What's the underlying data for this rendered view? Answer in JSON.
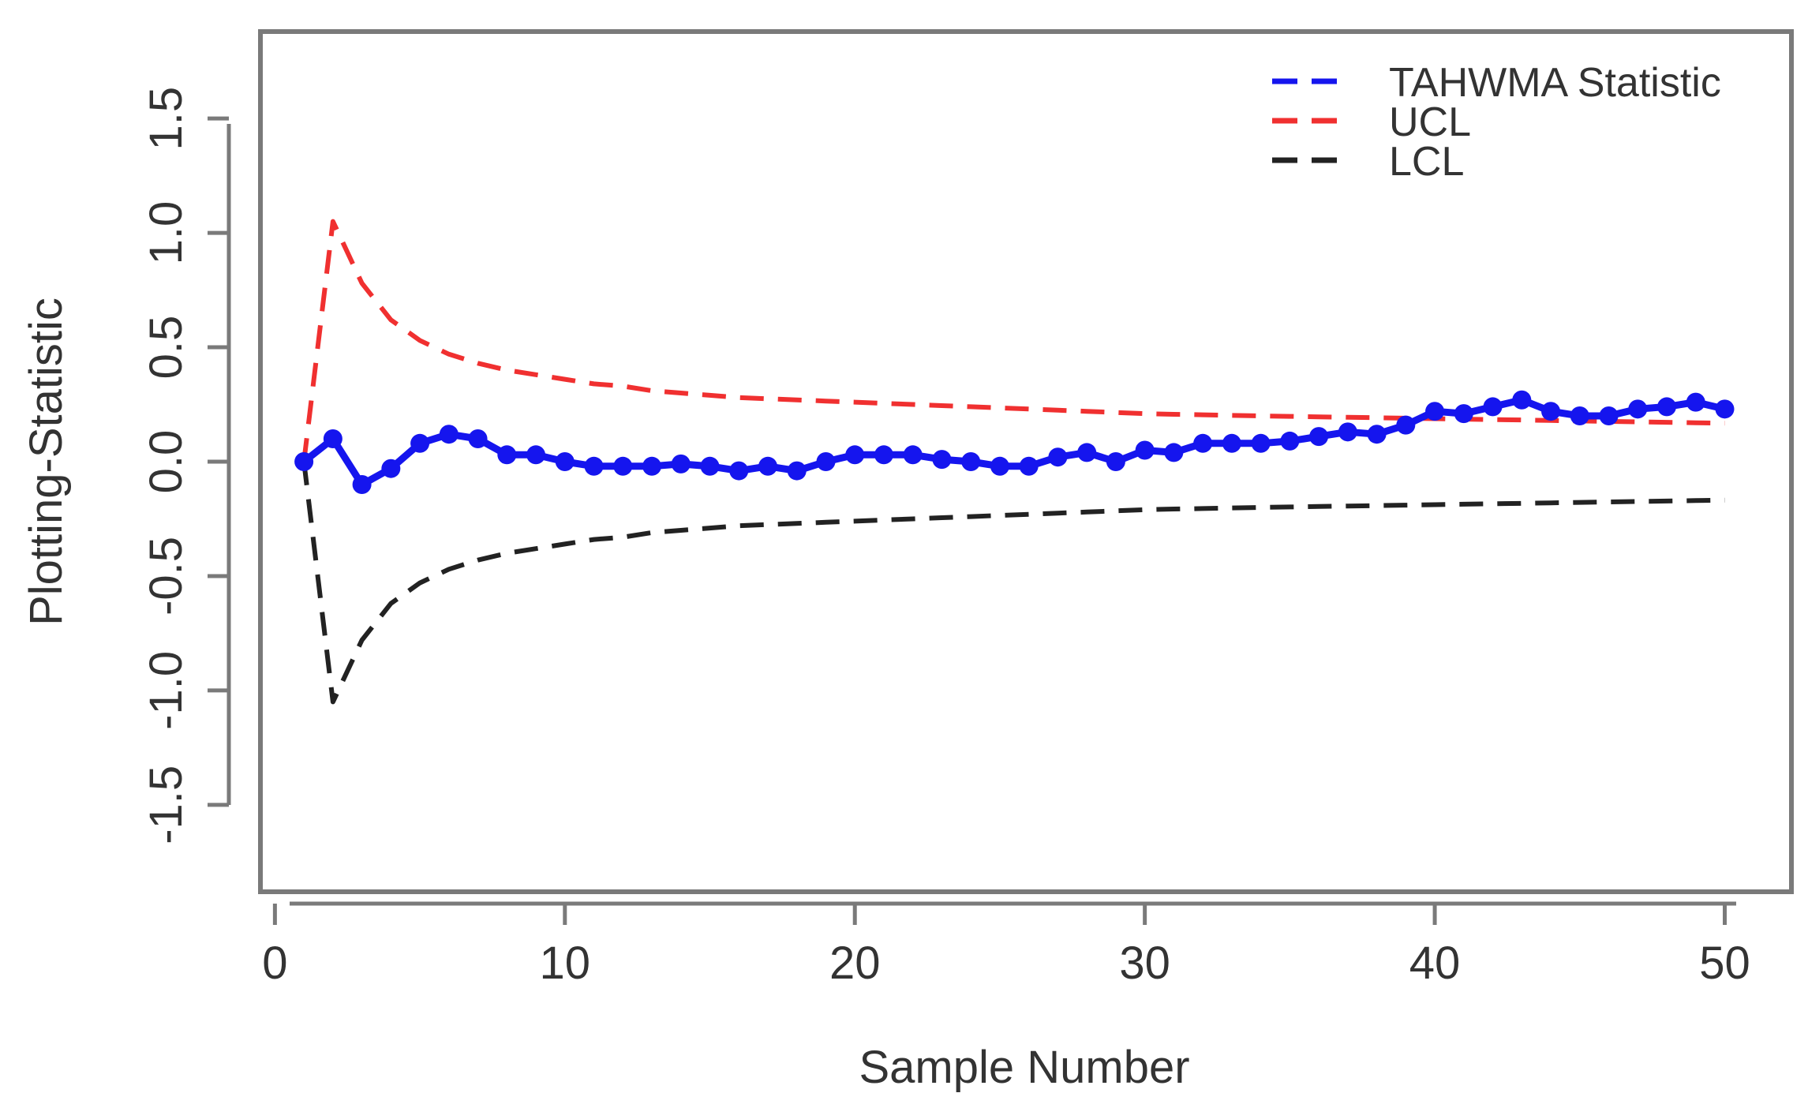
{
  "chart_data": {
    "type": "line",
    "title": "",
    "xlabel": "Sample Number",
    "ylabel": "Plotting-Statistic",
    "xlim": [
      -0.5,
      52.3
    ],
    "ylim": [
      -1.88,
      1.88
    ],
    "xticks": [
      0,
      10,
      20,
      30,
      40,
      50
    ],
    "xtick_labels": [
      "0",
      "10",
      "20",
      "30",
      "40",
      "50"
    ],
    "yticks": [
      -1.5,
      -1.0,
      -0.5,
      0.0,
      0.5,
      1.0,
      1.5
    ],
    "ytick_labels": [
      "-1.5",
      "-1.0",
      "-0.5",
      "0.0",
      "0.5",
      "1.0",
      "1.5"
    ],
    "legend_position": "top-right",
    "colors": {
      "statistic": "#1515ee",
      "ucl": "#f03030",
      "lcl": "#222222",
      "frame": "#7a7a7a"
    },
    "x": [
      1,
      2,
      3,
      4,
      5,
      6,
      7,
      8,
      9,
      10,
      11,
      12,
      13,
      14,
      15,
      16,
      17,
      18,
      19,
      20,
      21,
      22,
      23,
      24,
      25,
      26,
      27,
      28,
      29,
      30,
      31,
      32,
      33,
      34,
      35,
      36,
      37,
      38,
      39,
      40,
      41,
      42,
      43,
      44,
      45,
      46,
      47,
      48,
      49,
      50
    ],
    "series": [
      {
        "name": "TAHWMA Statistic",
        "key": "statistic",
        "values": [
          0.0,
          0.1,
          -0.1,
          -0.03,
          0.08,
          0.12,
          0.1,
          0.03,
          0.03,
          0.0,
          -0.02,
          -0.02,
          -0.02,
          -0.01,
          -0.02,
          -0.04,
          -0.02,
          -0.04,
          0.0,
          0.03,
          0.03,
          0.03,
          0.01,
          0.0,
          -0.02,
          -0.02,
          0.02,
          0.04,
          0.0,
          0.05,
          0.04,
          0.08,
          0.08,
          0.08,
          0.09,
          0.11,
          0.13,
          0.12,
          0.16,
          0.22,
          0.21,
          0.24,
          0.27,
          0.22,
          0.2,
          0.2,
          0.23,
          0.24,
          0.26,
          0.23
        ]
      },
      {
        "name": "UCL",
        "key": "ucl",
        "values": [
          0.0,
          1.05,
          0.78,
          0.62,
          0.53,
          0.47,
          0.43,
          0.4,
          0.38,
          0.36,
          0.34,
          0.33,
          0.31,
          0.3,
          0.29,
          0.28,
          0.275,
          0.27,
          0.265,
          0.26,
          0.255,
          0.25,
          0.245,
          0.24,
          0.235,
          0.23,
          0.225,
          0.22,
          0.215,
          0.21,
          0.207,
          0.205,
          0.202,
          0.2,
          0.198,
          0.196,
          0.194,
          0.192,
          0.19,
          0.188,
          0.186,
          0.184,
          0.182,
          0.18,
          0.178,
          0.176,
          0.174,
          0.172,
          0.17,
          0.168
        ]
      },
      {
        "name": "LCL",
        "key": "lcl",
        "values": [
          0.0,
          -1.05,
          -0.78,
          -0.62,
          -0.53,
          -0.47,
          -0.43,
          -0.4,
          -0.38,
          -0.36,
          -0.34,
          -0.33,
          -0.31,
          -0.3,
          -0.29,
          -0.28,
          -0.275,
          -0.27,
          -0.265,
          -0.26,
          -0.255,
          -0.25,
          -0.245,
          -0.24,
          -0.235,
          -0.23,
          -0.225,
          -0.22,
          -0.215,
          -0.21,
          -0.207,
          -0.205,
          -0.202,
          -0.2,
          -0.198,
          -0.196,
          -0.194,
          -0.192,
          -0.19,
          -0.188,
          -0.186,
          -0.184,
          -0.182,
          -0.18,
          -0.178,
          -0.176,
          -0.174,
          -0.172,
          -0.17,
          -0.168
        ]
      }
    ]
  }
}
